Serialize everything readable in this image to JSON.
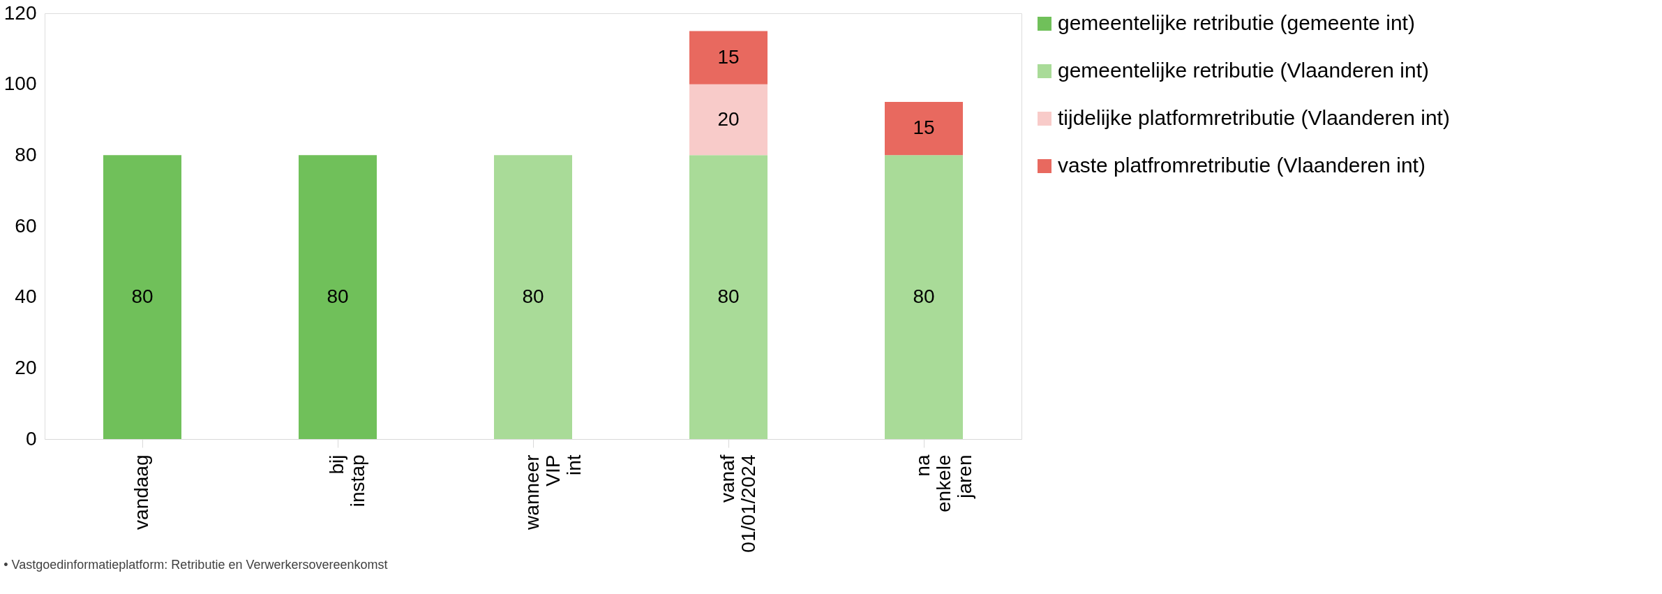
{
  "chart_data": {
    "type": "bar",
    "stacked": true,
    "categories": [
      "vandaag",
      "bij instap",
      "wanneer VIP int",
      "vanaf 01/01/2024",
      "na enkele jaren"
    ],
    "series": [
      {
        "name": "gemeentelijke retributie (gemeente int)",
        "color": "#70c05a",
        "values": [
          80,
          80,
          null,
          null,
          null
        ]
      },
      {
        "name": "gemeentelijke retributie (Vlaanderen int)",
        "color": "#a9db98",
        "values": [
          null,
          null,
          80,
          80,
          80
        ]
      },
      {
        "name": "tijdelijke platformretributie (Vlaanderen int)",
        "color": "#f8cbc9",
        "values": [
          null,
          null,
          null,
          20,
          null
        ]
      },
      {
        "name": "vaste platfromretributie (Vlaanderen int)",
        "color": "#e8695f",
        "values": [
          null,
          null,
          null,
          15,
          15
        ]
      }
    ],
    "ylim": [
      0,
      120
    ],
    "yticks": [
      0,
      20,
      40,
      60,
      80,
      100,
      120
    ],
    "grid": false,
    "legend": "right",
    "data_labels": true,
    "annotations": [
      "• Vastgoedinformatieplatform: Retributie en Verwerkersovereenkomst"
    ]
  }
}
